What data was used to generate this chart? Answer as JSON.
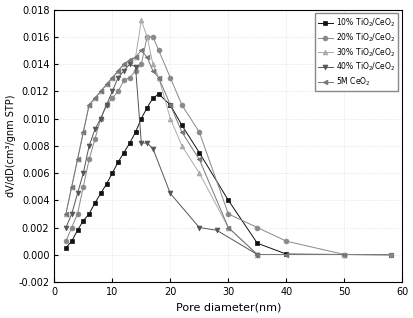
{
  "title": "",
  "xlabel": "Pore diameter(nm)",
  "ylabel": "dV/dD(cm³/gnm STP)",
  "xlim": [
    0,
    60
  ],
  "ylim": [
    -0.002,
    0.018
  ],
  "yticks": [
    -0.002,
    0.0,
    0.002,
    0.004,
    0.006,
    0.008,
    0.01,
    0.012,
    0.014,
    0.016,
    0.018
  ],
  "xticks": [
    0,
    10,
    20,
    30,
    40,
    50,
    60
  ],
  "series": [
    {
      "label": "10% TiO$_2$/CeO$_2$",
      "color": "#111111",
      "marker": "s",
      "markersize": 3.5,
      "x": [
        2,
        3,
        4,
        5,
        6,
        7,
        8,
        9,
        10,
        11,
        12,
        13,
        14,
        15,
        16,
        17,
        18,
        20,
        22,
        25,
        30,
        35,
        40,
        50,
        58
      ],
      "y": [
        0.0005,
        0.001,
        0.0018,
        0.0025,
        0.003,
        0.0038,
        0.0045,
        0.0052,
        0.006,
        0.0068,
        0.0075,
        0.0082,
        0.009,
        0.01,
        0.0108,
        0.0115,
        0.0118,
        0.011,
        0.0095,
        0.0075,
        0.004,
        0.00085,
        5e-05,
        2e-05,
        0.0
      ]
    },
    {
      "label": "20% TiO$_2$/CeO$_2$",
      "color": "#888888",
      "marker": "o",
      "markersize": 3.5,
      "x": [
        2,
        3,
        4,
        5,
        6,
        7,
        8,
        9,
        10,
        11,
        12,
        13,
        14,
        15,
        16,
        17,
        18,
        20,
        22,
        25,
        30,
        35,
        40,
        50,
        58
      ],
      "y": [
        0.001,
        0.002,
        0.003,
        0.005,
        0.007,
        0.0085,
        0.01,
        0.011,
        0.0115,
        0.012,
        0.0128,
        0.013,
        0.0135,
        0.014,
        0.016,
        0.016,
        0.015,
        0.013,
        0.011,
        0.009,
        0.003,
        0.002,
        0.001,
        2e-05,
        0.0
      ]
    },
    {
      "label": "30% TiO$_2$/CeO$_2$",
      "color": "#aaaaaa",
      "marker": "^",
      "markersize": 3.5,
      "x": [
        2,
        3,
        4,
        5,
        6,
        7,
        8,
        9,
        10,
        11,
        12,
        13,
        14,
        15,
        16,
        17,
        18,
        20,
        22,
        25,
        30,
        35,
        50
      ],
      "y": [
        0.003,
        0.005,
        0.007,
        0.009,
        0.011,
        0.0115,
        0.012,
        0.0125,
        0.013,
        0.0135,
        0.014,
        0.0143,
        0.0145,
        0.0172,
        0.016,
        0.014,
        0.013,
        0.01,
        0.008,
        0.006,
        0.002,
        2e-05,
        2e-05
      ]
    },
    {
      "label": "40% TiO$_2$/CeO$_2$",
      "color": "#555555",
      "marker": "v",
      "markersize": 3.5,
      "x": [
        2,
        3,
        4,
        5,
        6,
        7,
        8,
        9,
        10,
        11,
        12,
        13,
        14,
        15,
        16,
        17,
        20,
        25,
        28,
        35
      ],
      "y": [
        0.002,
        0.003,
        0.0045,
        0.006,
        0.008,
        0.0092,
        0.01,
        0.011,
        0.012,
        0.013,
        0.0135,
        0.014,
        0.0138,
        0.0082,
        0.0082,
        0.0078,
        0.0045,
        0.002,
        0.0018,
        2e-05
      ]
    },
    {
      "label": "5M CeO$_2$",
      "color": "#777777",
      "marker": "<",
      "markersize": 3.5,
      "x": [
        2,
        3,
        4,
        5,
        6,
        7,
        8,
        9,
        10,
        11,
        12,
        13,
        14,
        15,
        16,
        17,
        18,
        20,
        22,
        25,
        30,
        35,
        40,
        50
      ],
      "y": [
        0.003,
        0.005,
        0.007,
        0.009,
        0.011,
        0.0115,
        0.012,
        0.0125,
        0.013,
        0.0135,
        0.014,
        0.0143,
        0.0145,
        0.015,
        0.0145,
        0.0135,
        0.013,
        0.011,
        0.009,
        0.007,
        0.002,
        2e-05,
        2e-05,
        2e-05
      ]
    }
  ],
  "legend_loc": "upper right",
  "background_color": "#ffffff",
  "grid": true
}
